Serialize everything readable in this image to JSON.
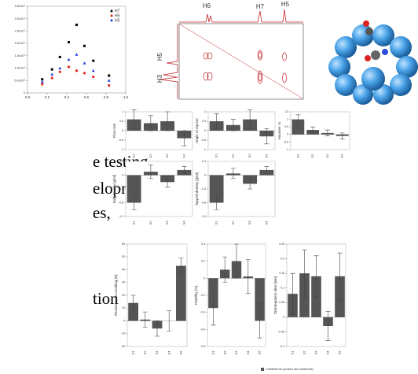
{
  "slide_text": [
    "e testing",
    "elopment",
    "es,",
    "tion"
  ],
  "nmr": {
    "top_labels": [
      "H6",
      "H7",
      "H5"
    ],
    "side_labels": [
      "H5",
      "H3"
    ]
  },
  "legend_note": "Coefficients (scaled and centered)",
  "chart_data": [
    {
      "type": "scatter",
      "x": [
        0.15,
        0.25,
        0.33,
        0.42,
        0.5,
        0.58,
        0.67,
        0.83
      ],
      "series": [
        {
          "name": "H7",
          "color": "#000000",
          "values": [
            5500000,
            9500000,
            14500000,
            20500000,
            27500000,
            19000000,
            13000000,
            7000000
          ]
        },
        {
          "name": "H6",
          "color": "#e8261f",
          "values": [
            3500000,
            6000000,
            8500000,
            10500000,
            9000000,
            8000000,
            6500000,
            3000000
          ]
        },
        {
          "name": "H5",
          "color": "#2a3be0",
          "values": [
            4500000,
            7500000,
            10000000,
            13500000,
            15500000,
            12000000,
            9000000,
            5000000
          ]
        }
      ],
      "xlim": [
        0,
        1
      ],
      "xticks": [
        {
          "value": 0,
          "label": "0.0"
        },
        0.2,
        0.4,
        0.6,
        0.8,
        {
          "value": 1,
          "label": "1.0"
        }
      ],
      "ylim": [
        0,
        35000000
      ],
      "yticks": [
        {
          "value": 0,
          "label": "0"
        },
        {
          "value": 5000000,
          "label": "5.0x10⁶"
        },
        {
          "value": 10000000,
          "label": "1.0x10⁷"
        },
        {
          "value": 15000000,
          "label": "1.5x10⁷"
        },
        {
          "value": 20000000,
          "label": "2.0x10⁷"
        },
        {
          "value": 25000000,
          "label": "2.5x10⁷"
        },
        {
          "value": 30000000,
          "label": "3.0x10⁷"
        },
        {
          "value": 35000000,
          "label": "3.5x10⁷"
        }
      ],
      "legend": "upper right"
    },
    {
      "type": "bar",
      "ylabel": "Flow rate",
      "categories": [
        "S1",
        "S2",
        "S3",
        "S4"
      ],
      "values": [
        0.6,
        0.4,
        0.5,
        -0.4
      ],
      "errors": [
        0.5,
        0.4,
        0.5,
        0.4
      ],
      "ylim": [
        -1,
        1
      ],
      "yticks": [
        -1,
        -0.5,
        0,
        0.5,
        1
      ],
      "color": "#555555"
    },
    {
      "type": "bar",
      "ylabel": "Angle of repose",
      "categories": [
        "S1",
        "S2",
        "S3",
        "S4"
      ],
      "values": [
        0.5,
        0.3,
        0.6,
        -0.3
      ],
      "errors": [
        0.4,
        0.3,
        0.5,
        0.4
      ],
      "ylim": [
        -1,
        1
      ],
      "yticks": [
        -1,
        -0.5,
        0,
        0.5,
        1
      ],
      "color": "#555555"
    },
    {
      "type": "bar",
      "ylabel": "Hausner co",
      "categories": [
        "S1",
        "S2",
        "S3",
        "S4"
      ],
      "values": [
        1,
        0.3,
        0.1,
        -0.1
      ],
      "errors": [
        0.3,
        0.2,
        0.2,
        0.2
      ],
      "ylim": [
        -1,
        1.5
      ],
      "yticks": [
        -1,
        -0.5,
        0,
        0.5,
        1,
        1.5
      ],
      "color": "#555555"
    },
    {
      "type": "bar",
      "ylabel": "Bulk density [g/ml]",
      "categories": [
        "S1",
        "S2",
        "S3",
        "S4"
      ],
      "values": [
        -0.8,
        0.1,
        -0.2,
        0.15
      ],
      "errors": [
        0.2,
        0.2,
        0.15,
        0.1
      ],
      "ylim": [
        -1.2,
        0.4
      ],
      "yticks": [
        -1.2,
        -0.8,
        -0.4,
        0,
        0.4
      ],
      "color": "#555555"
    },
    {
      "type": "bar",
      "ylabel": "Tapped density [g/ml]",
      "categories": [
        "S1",
        "S2",
        "S3",
        "S4"
      ],
      "values": [
        -0.8,
        0.05,
        -0.25,
        0.15
      ],
      "errors": [
        0.2,
        0.15,
        0.15,
        0.1
      ],
      "ylim": [
        -1.2,
        0.4
      ],
      "yticks": [
        -1.2,
        -0.8,
        -0.4,
        0,
        0.4
      ],
      "color": "#555555"
    },
    {
      "type": "bar",
      "ylabel": "Resistance to crushing [N]",
      "categories": [
        "S1",
        "S2",
        "S3",
        "S4",
        "S5"
      ],
      "values": [
        14,
        1,
        -6,
        0,
        43
      ],
      "errors": [
        6,
        6,
        6,
        8,
        6
      ],
      "ylim": [
        -20,
        60
      ],
      "yticks": [
        -20,
        -10,
        0,
        10,
        20,
        30,
        40,
        50,
        60
      ],
      "color": "#555555"
    },
    {
      "type": "bar",
      "ylabel": "Friability [%]",
      "categories": [
        "S1",
        "S2",
        "S3",
        "S4",
        "S5"
      ],
      "values": [
        -0.35,
        0.1,
        0.2,
        0.02,
        -0.5
      ],
      "errors": [
        0.2,
        0.15,
        0.2,
        0.2,
        0.2
      ],
      "ylim": [
        -0.8,
        0.4
      ],
      "yticks": [
        -0.8,
        -0.6,
        -0.4,
        -0.2,
        0,
        0.2,
        0.4
      ],
      "color": "#555555"
    },
    {
      "type": "bar",
      "ylabel": "Disintegration time [min]",
      "categories": [
        "S1",
        "S2",
        "S3",
        "S4",
        "S5"
      ],
      "values": [
        0.08,
        0.15,
        0.14,
        -0.03,
        0.14
      ],
      "errors": [
        0.07,
        0.08,
        0.07,
        0.05,
        0.08
      ],
      "ylim": [
        -0.1,
        0.25
      ],
      "yticks": [
        -0.1,
        -0.05,
        0,
        0.05,
        0.1,
        0.15,
        0.2,
        0.25
      ],
      "color": "#555555"
    }
  ]
}
